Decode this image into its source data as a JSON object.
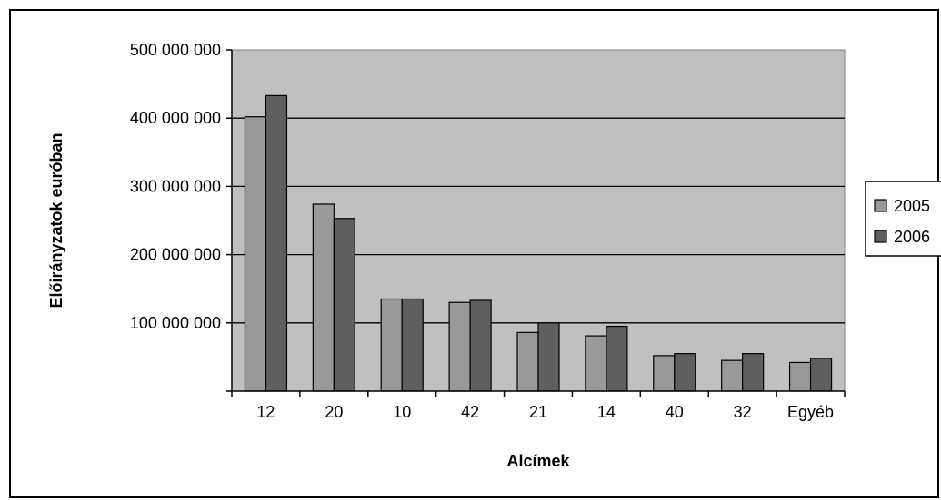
{
  "chart_data": {
    "type": "bar",
    "title": "",
    "xlabel": "Alcímek",
    "ylabel": "Előirányzatok euróban",
    "categories": [
      "12",
      "20",
      "10",
      "42",
      "21",
      "14",
      "40",
      "32",
      "Egyéb"
    ],
    "series": [
      {
        "name": "2005",
        "color": "#999999",
        "values": [
          402000000,
          274000000,
          135000000,
          130000000,
          86000000,
          81000000,
          52000000,
          45000000,
          42000000
        ]
      },
      {
        "name": "2006",
        "color": "#5f5f5f",
        "values": [
          433000000,
          253000000,
          135000000,
          133000000,
          100000000,
          95000000,
          55000000,
          55000000,
          48000000
        ]
      }
    ],
    "ylim": [
      0,
      500000000
    ],
    "yticks": [
      0,
      100000000,
      200000000,
      300000000,
      400000000,
      500000000
    ],
    "ytick_labels": [
      "",
      "100 000 000",
      "200 000 000",
      "300 000 000",
      "400 000 000",
      "500 000 000"
    ],
    "grid": true,
    "plot_background": "#c0c0c0",
    "legend_position": "right"
  }
}
